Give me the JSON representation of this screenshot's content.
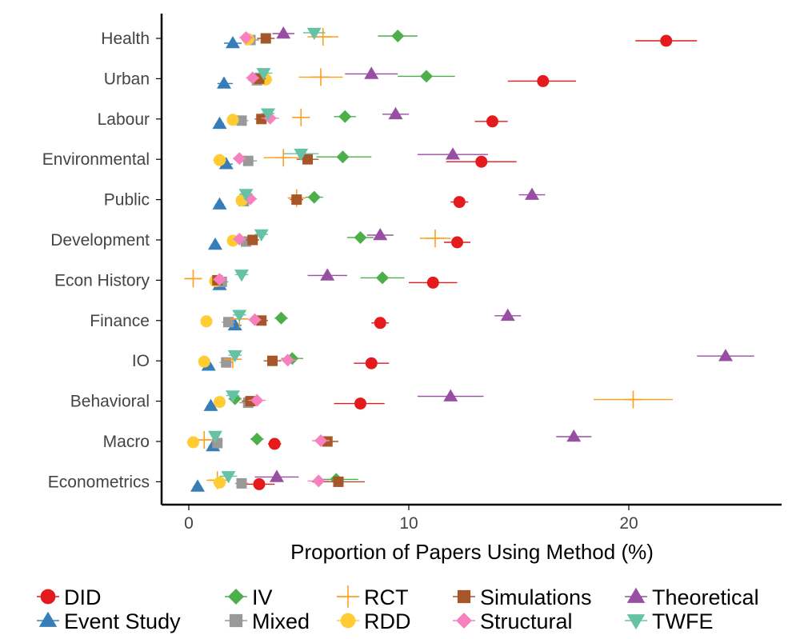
{
  "chart_data": {
    "type": "scatter",
    "title": "",
    "xlabel": "Proportion of Papers Using Method (%)",
    "ylabel": "",
    "xlim": [
      -1.2,
      27
    ],
    "x_ticks": [
      0,
      10,
      20
    ],
    "categories": [
      "Health",
      "Urban",
      "Labour",
      "Environmental",
      "Public",
      "Development",
      "Econ History",
      "Finance",
      "IO",
      "Behavioral",
      "Macro",
      "Econometrics"
    ],
    "legend_position": "bottom",
    "grid": false,
    "series": [
      {
        "name": "DID",
        "color": "#e41a1c",
        "shape": "circle",
        "values": [
          21.7,
          16.1,
          13.8,
          13.3,
          12.3,
          12.2,
          11.1,
          8.7,
          8.3,
          7.8,
          3.9,
          3.2
        ],
        "err_low": [
          20.3,
          14.5,
          13.0,
          11.7,
          11.9,
          11.6,
          10.0,
          8.3,
          7.5,
          6.6,
          3.6,
          2.5
        ],
        "err_high": [
          23.1,
          17.6,
          14.5,
          14.9,
          12.7,
          12.8,
          12.2,
          9.1,
          9.1,
          8.9,
          4.2,
          3.9
        ]
      },
      {
        "name": "Event Study",
        "color": "#377eb8",
        "shape": "triangle-up",
        "values": [
          2.0,
          1.6,
          1.4,
          1.7,
          1.4,
          1.2,
          1.4,
          2.1,
          0.9,
          1.0,
          1.1,
          0.4
        ],
        "err_low": [
          1.6,
          1.3,
          1.2,
          1.4,
          1.2,
          1.0,
          1.1,
          1.8,
          0.7,
          0.8,
          0.9,
          0.2
        ],
        "err_high": [
          2.4,
          2.0,
          1.6,
          2.0,
          1.6,
          1.4,
          1.7,
          2.4,
          1.1,
          1.2,
          1.3,
          0.6
        ]
      },
      {
        "name": "IV",
        "color": "#4daf4a",
        "shape": "diamond",
        "values": [
          9.5,
          10.8,
          7.1,
          7.0,
          5.7,
          7.8,
          8.8,
          4.2,
          4.7,
          2.1,
          3.1,
          6.7
        ],
        "err_low": [
          8.6,
          9.5,
          6.6,
          5.8,
          5.3,
          7.2,
          7.8,
          3.9,
          4.2,
          1.8,
          2.8,
          5.7
        ],
        "err_high": [
          10.4,
          12.1,
          7.6,
          8.3,
          6.1,
          8.4,
          9.8,
          4.5,
          5.2,
          2.4,
          3.4,
          7.7
        ]
      },
      {
        "name": "Mixed",
        "color": "#999999",
        "shape": "square",
        "values": [
          2.8,
          3.1,
          2.4,
          2.7,
          2.5,
          2.6,
          1.5,
          1.8,
          1.7,
          2.7,
          1.3,
          2.4
        ],
        "err_low": [
          2.4,
          2.7,
          2.1,
          2.3,
          2.3,
          2.3,
          1.2,
          1.5,
          1.4,
          2.3,
          1.1,
          2.1
        ],
        "err_high": [
          3.2,
          3.5,
          2.7,
          3.1,
          2.7,
          2.9,
          1.8,
          2.1,
          2.0,
          3.1,
          1.5,
          2.7
        ]
      },
      {
        "name": "RCT",
        "color": "#ff9e1b",
        "shape": "plus",
        "values": [
          6.1,
          6.0,
          5.1,
          4.3,
          4.9,
          11.2,
          0.2,
          2.3,
          2.0,
          20.2,
          0.7,
          1.3
        ],
        "err_low": [
          5.4,
          5.0,
          4.7,
          3.4,
          4.5,
          10.5,
          -0.2,
          2.0,
          1.6,
          18.4,
          0.4,
          0.8
        ],
        "err_high": [
          6.8,
          7.0,
          5.5,
          5.2,
          5.3,
          11.9,
          0.6,
          2.6,
          2.4,
          22.0,
          1.0,
          1.8
        ]
      },
      {
        "name": "RDD",
        "color": "#ffcc33",
        "shape": "circle",
        "values": [
          2.7,
          3.5,
          2.0,
          1.4,
          2.4,
          2.0,
          1.2,
          0.8,
          0.7,
          1.4,
          0.2,
          1.4
        ],
        "err_low": [
          2.4,
          3.2,
          1.8,
          1.1,
          2.2,
          1.8,
          1.0,
          0.6,
          0.5,
          1.2,
          0.1,
          1.1
        ],
        "err_high": [
          3.0,
          3.8,
          2.2,
          1.7,
          2.6,
          2.2,
          1.4,
          1.0,
          0.9,
          1.6,
          0.3,
          1.7
        ]
      },
      {
        "name": "Simulations",
        "color": "#a65628",
        "shape": "square",
        "values": [
          3.5,
          3.2,
          3.3,
          5.4,
          4.9,
          2.9,
          1.3,
          3.3,
          3.8,
          2.8,
          6.3,
          6.8
        ],
        "err_low": [
          3.1,
          2.9,
          3.0,
          4.9,
          4.6,
          2.6,
          1.1,
          3.0,
          3.4,
          2.4,
          5.8,
          5.6
        ],
        "err_high": [
          3.9,
          3.5,
          3.6,
          5.9,
          5.2,
          3.2,
          1.5,
          3.6,
          4.2,
          3.2,
          6.8,
          8.0
        ]
      },
      {
        "name": "Structural",
        "color": "#f781bf",
        "shape": "diamond",
        "values": [
          2.6,
          2.9,
          3.7,
          2.3,
          2.8,
          2.3,
          1.4,
          3.0,
          4.5,
          3.1,
          6.0,
          5.9
        ],
        "err_low": [
          2.3,
          2.6,
          3.3,
          2.0,
          2.5,
          2.0,
          1.1,
          2.7,
          4.1,
          2.7,
          5.6,
          5.4
        ],
        "err_high": [
          2.9,
          3.2,
          4.1,
          2.6,
          3.1,
          2.6,
          1.7,
          3.3,
          4.9,
          3.5,
          6.4,
          6.4
        ]
      },
      {
        "name": "Theoretical",
        "color": "#984ea3",
        "shape": "triangle-up",
        "values": [
          4.3,
          8.3,
          9.4,
          12.0,
          15.6,
          8.7,
          6.3,
          14.5,
          24.4,
          11.9,
          17.5,
          4.0
        ],
        "err_low": [
          3.8,
          7.1,
          8.8,
          10.4,
          15.0,
          8.1,
          5.4,
          13.9,
          23.1,
          10.4,
          16.7,
          3.0
        ],
        "err_high": [
          4.8,
          9.5,
          10.0,
          13.6,
          16.2,
          9.3,
          7.2,
          15.1,
          25.7,
          13.4,
          18.3,
          5.0
        ]
      },
      {
        "name": "TWFE",
        "color": "#66c2a5",
        "shape": "triangle-down",
        "values": [
          5.7,
          3.4,
          3.6,
          5.1,
          2.6,
          3.3,
          2.4,
          2.3,
          2.1,
          2.0,
          1.2,
          1.8
        ],
        "err_low": [
          5.2,
          3.0,
          3.3,
          4.3,
          2.3,
          3.0,
          2.1,
          2.0,
          1.8,
          1.7,
          1.0,
          1.4
        ],
        "err_high": [
          6.2,
          3.8,
          3.9,
          5.9,
          2.9,
          3.6,
          2.7,
          2.6,
          2.4,
          2.3,
          1.4,
          2.2
        ]
      }
    ]
  }
}
